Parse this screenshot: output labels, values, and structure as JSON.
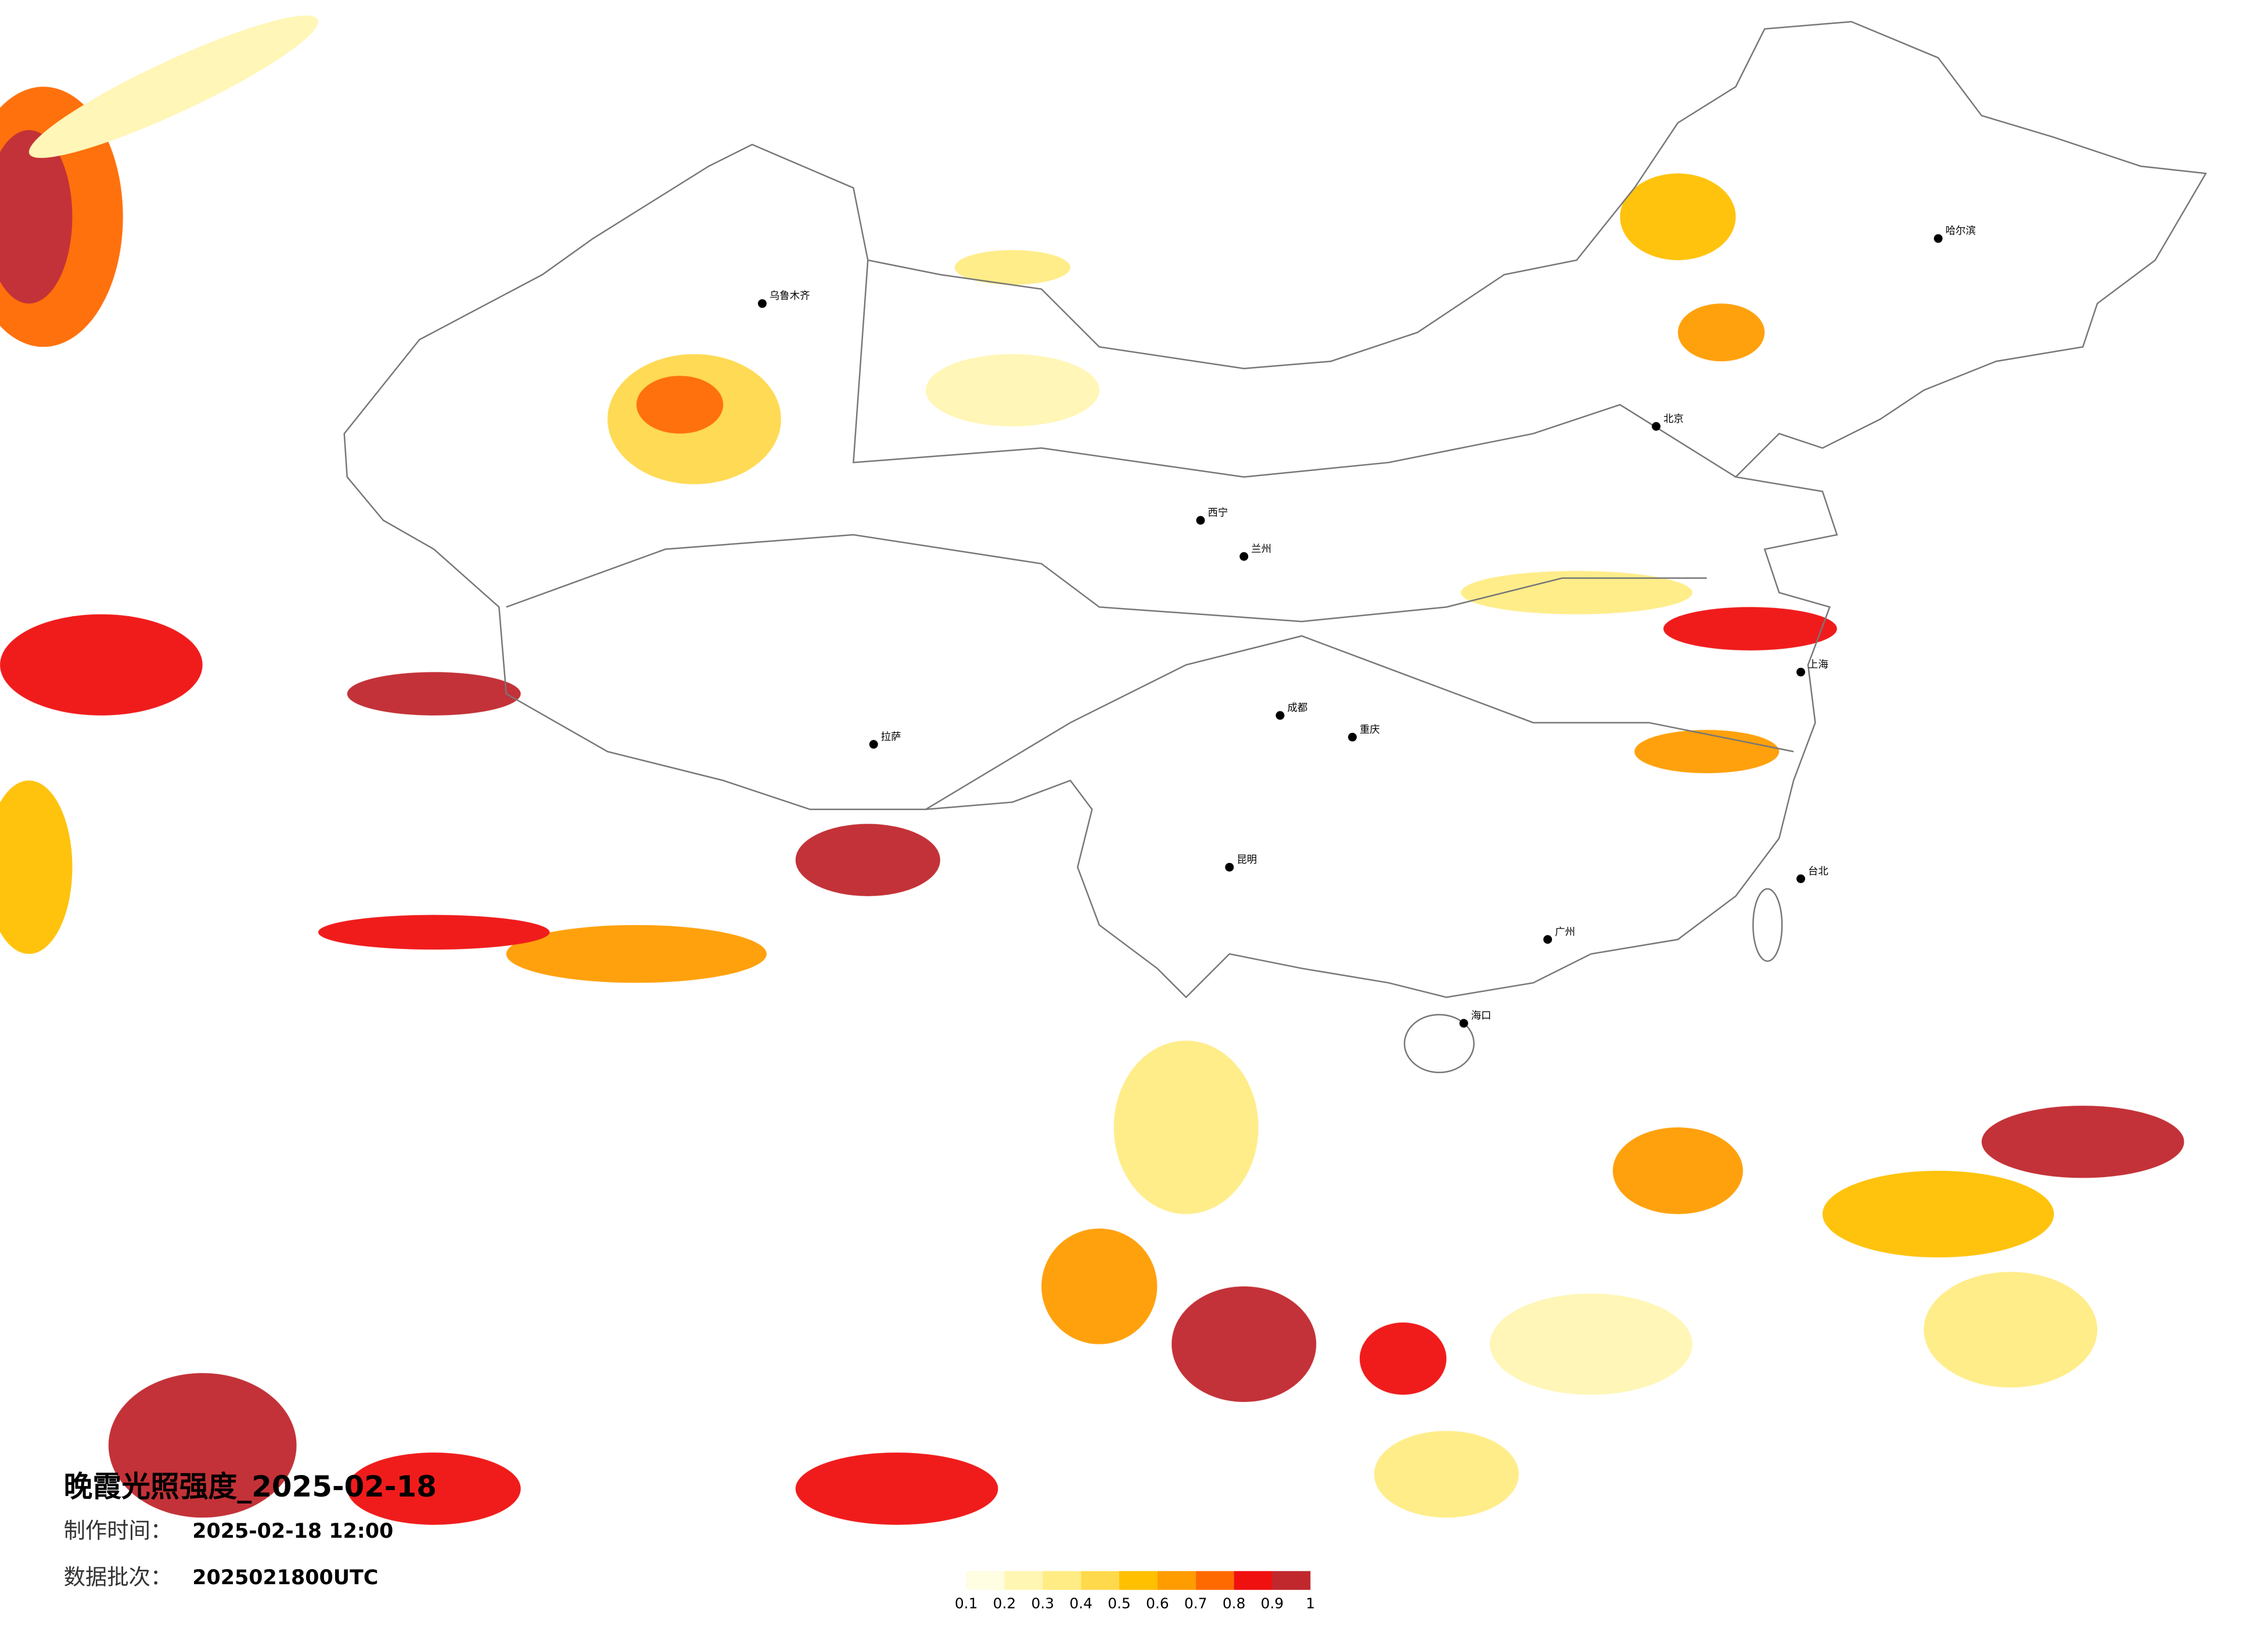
{
  "header": {
    "title": "晚霞光照强度_2025-02-18"
  },
  "info": [
    {
      "label": "制作时间：",
      "value": "2025-02-18 12:00"
    },
    {
      "label": "数据批次：",
      "value": "2025021800UTC"
    }
  ],
  "legend": {
    "ticks": [
      0.1,
      0.2,
      0.3,
      0.4,
      0.5,
      0.6,
      0.7,
      0.8,
      0.9,
      1
    ],
    "colors": [
      "#fffde2",
      "#fff6b4",
      "#ffec84",
      "#ffd94c",
      "#ffc000",
      "#ff9c00",
      "#ff6a00",
      "#f01010",
      "#c0282e"
    ]
  },
  "cities": [
    {
      "name": "乌鲁木齐"
    },
    {
      "name": "拉萨"
    },
    {
      "name": "西宁"
    },
    {
      "name": "兰州"
    },
    {
      "name": "成都"
    },
    {
      "name": "重庆"
    },
    {
      "name": "昆明"
    },
    {
      "name": "广州"
    },
    {
      "name": "北京"
    },
    {
      "name": "上海"
    },
    {
      "name": "哈尔滨"
    },
    {
      "name": "海口"
    },
    {
      "name": "台北"
    }
  ]
}
